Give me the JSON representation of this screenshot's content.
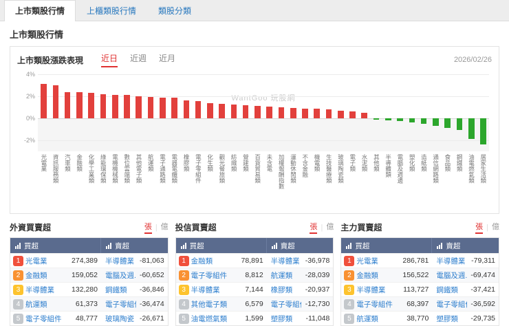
{
  "tabs": [
    {
      "label": "上市類股行情",
      "active": true
    },
    {
      "label": "上櫃類股行情",
      "active": false
    },
    {
      "label": "類股分類",
      "active": false
    }
  ],
  "page_title": "上市類股行情",
  "chart_panel": {
    "title": "上市類股漲跌表現",
    "range_tabs": [
      "近日",
      "近週",
      "近月"
    ],
    "active_range": "近日",
    "date": "2026/02/26",
    "watermark": "WantGoo 玩股網"
  },
  "chart_data": {
    "type": "bar",
    "title": "上市類股漲跌表現",
    "xlabel": "",
    "ylabel": "",
    "ylim": [
      -3,
      4
    ],
    "yticks": [
      4,
      2,
      0,
      -2
    ],
    "grid": true,
    "colors": {
      "positive": "#e2403c",
      "negative": "#2ca62c"
    },
    "categories": [
      "光電業",
      "資訊服務類",
      "汽車類",
      "金融類",
      "化學工業類",
      "綠能環保類",
      "電機機械類",
      "數位雲端類",
      "其他電子類",
      "航運類",
      "電子通路類",
      "電器電纜類",
      "橡膠類",
      "電子零組件",
      "化生類",
      "觀光餐旅類",
      "紡織類",
      "營建類",
      "百貨貿易類",
      "未含電",
      "加權報酬指數",
      "運動休閒類",
      "不含金融",
      "機電類",
      "生技醫療類",
      "玻璃陶瓷類",
      "電子類",
      "水泥類",
      "其他類",
      "半導體類",
      "電腦及週邊",
      "塑化類",
      "造紙類",
      "通信網路類",
      "食品類",
      "鋼鐵類",
      "油電燃氣類",
      "居家生活類"
    ],
    "values": [
      3.1,
      3.0,
      2.4,
      2.35,
      2.3,
      2.2,
      2.15,
      2.1,
      2.0,
      1.95,
      1.9,
      1.85,
      1.6,
      1.55,
      1.4,
      1.3,
      1.25,
      1.2,
      1.15,
      1.05,
      1.0,
      0.95,
      0.9,
      0.85,
      0.8,
      0.7,
      0.6,
      0.5,
      -0.1,
      -0.2,
      -0.25,
      -0.35,
      -0.5,
      -0.7,
      -0.85,
      -1.05,
      -1.9,
      -2.35
    ]
  },
  "panels": [
    {
      "title": "外資買賣超",
      "units": [
        "張",
        "億"
      ],
      "active_unit": "張",
      "buy_header": "買超",
      "sell_header": "賣超",
      "rows": [
        {
          "buy": {
            "name": "光電業",
            "value": "274,389"
          },
          "sell": {
            "name": "半導體業",
            "value": "-81,063"
          }
        },
        {
          "buy": {
            "name": "金融類",
            "value": "159,052"
          },
          "sell": {
            "name": "電腦及週...",
            "value": "-60,652"
          }
        },
        {
          "buy": {
            "name": "半導體業",
            "value": "132,280"
          },
          "sell": {
            "name": "鋼鐵類",
            "value": "-36,846"
          }
        },
        {
          "buy": {
            "name": "航運類",
            "value": "61,373"
          },
          "sell": {
            "name": "電子零組件",
            "value": "-36,474"
          }
        },
        {
          "buy": {
            "name": "電子零組件",
            "value": "48,777"
          },
          "sell": {
            "name": "玻璃陶瓷",
            "value": "-26,671"
          }
        }
      ]
    },
    {
      "title": "投信買賣超",
      "units": [
        "張",
        "億"
      ],
      "active_unit": "張",
      "buy_header": "買超",
      "sell_header": "賣超",
      "rows": [
        {
          "buy": {
            "name": "金融類",
            "value": "78,891"
          },
          "sell": {
            "name": "半導體業",
            "value": "-36,978"
          }
        },
        {
          "buy": {
            "name": "電子零組件",
            "value": "8,812"
          },
          "sell": {
            "name": "航運類",
            "value": "-28,039"
          }
        },
        {
          "buy": {
            "name": "半導體業",
            "value": "7,144"
          },
          "sell": {
            "name": "橡膠類",
            "value": "-20,937"
          }
        },
        {
          "buy": {
            "name": "其他電子類",
            "value": "6,579"
          },
          "sell": {
            "name": "電子零組件",
            "value": "-12,730"
          }
        },
        {
          "buy": {
            "name": "油電燃氣類",
            "value": "1,599"
          },
          "sell": {
            "name": "塑膠類",
            "value": "-11,048"
          }
        }
      ]
    },
    {
      "title": "主力買賣超",
      "units": [
        "張",
        "億"
      ],
      "active_unit": "張",
      "buy_header": "買超",
      "sell_header": "賣超",
      "rows": [
        {
          "buy": {
            "name": "光電業",
            "value": "286,781"
          },
          "sell": {
            "name": "半導體業",
            "value": "-79,311"
          }
        },
        {
          "buy": {
            "name": "金融類",
            "value": "156,522"
          },
          "sell": {
            "name": "電腦及週...",
            "value": "-69,474"
          }
        },
        {
          "buy": {
            "name": "半導體業",
            "value": "113,727"
          },
          "sell": {
            "name": "鋼鐵類",
            "value": "-37,421"
          }
        },
        {
          "buy": {
            "name": "電子零組件",
            "value": "68,397"
          },
          "sell": {
            "name": "電子零組件",
            "value": "-36,592"
          }
        },
        {
          "buy": {
            "name": "航運類",
            "value": "38,770"
          },
          "sell": {
            "name": "塑膠類",
            "value": "-29,735"
          }
        }
      ]
    }
  ]
}
